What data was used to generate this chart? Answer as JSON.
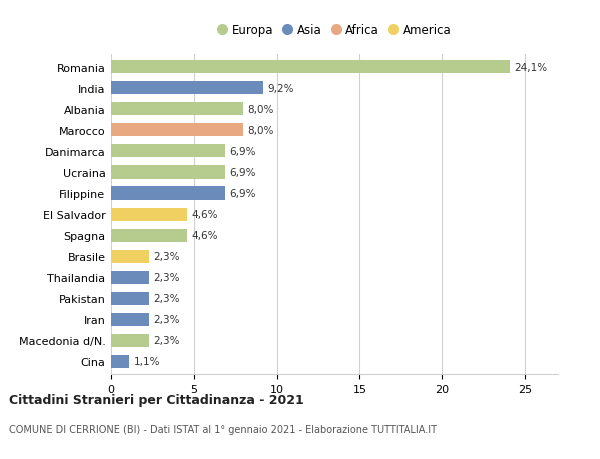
{
  "categories": [
    "Romania",
    "India",
    "Albania",
    "Marocco",
    "Danimarca",
    "Ucraina",
    "Filippine",
    "El Salvador",
    "Spagna",
    "Brasile",
    "Thailandia",
    "Pakistan",
    "Iran",
    "Macedonia d/N.",
    "Cina"
  ],
  "values": [
    24.1,
    9.2,
    8.0,
    8.0,
    6.9,
    6.9,
    6.9,
    4.6,
    4.6,
    2.3,
    2.3,
    2.3,
    2.3,
    2.3,
    1.1
  ],
  "labels": [
    "24,1%",
    "9,2%",
    "8,0%",
    "8,0%",
    "6,9%",
    "6,9%",
    "6,9%",
    "4,6%",
    "4,6%",
    "2,3%",
    "2,3%",
    "2,3%",
    "2,3%",
    "2,3%",
    "1,1%"
  ],
  "continents": [
    "Europa",
    "Asia",
    "Europa",
    "Africa",
    "Europa",
    "Europa",
    "Asia",
    "America",
    "Europa",
    "America",
    "Asia",
    "Asia",
    "Asia",
    "Europa",
    "Asia"
  ],
  "continent_colors": {
    "Europa": "#b5cc8e",
    "Asia": "#6b8cba",
    "Africa": "#e8a882",
    "America": "#f0d060"
  },
  "legend_order": [
    "Europa",
    "Asia",
    "Africa",
    "America"
  ],
  "title": "Cittadini Stranieri per Cittadinanza - 2021",
  "subtitle": "COMUNE DI CERRIONE (BI) - Dati ISTAT al 1° gennaio 2021 - Elaborazione TUTTITALIA.IT",
  "xlim": [
    0,
    27
  ],
  "xticks": [
    0,
    5,
    10,
    15,
    20,
    25
  ],
  "background_color": "#ffffff",
  "grid_color": "#d0d0d0",
  "bar_height": 0.62
}
